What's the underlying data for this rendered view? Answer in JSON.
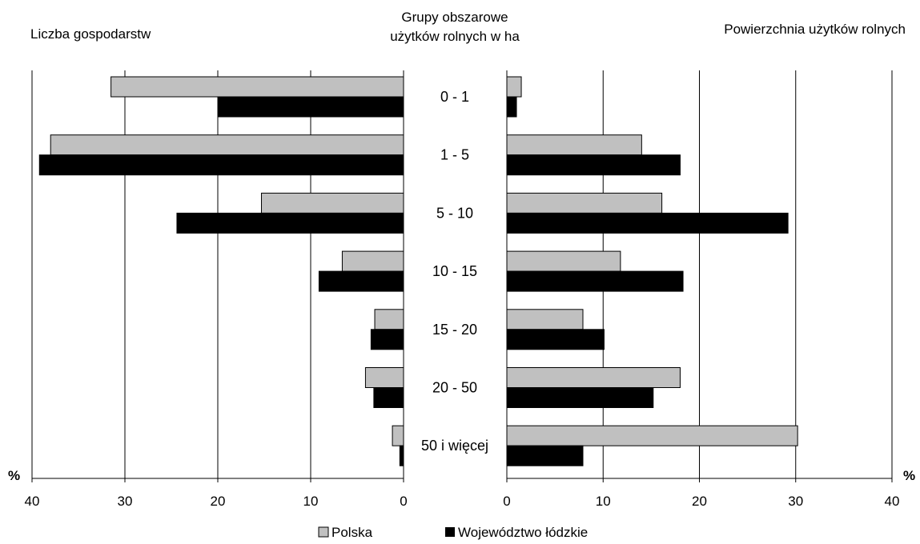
{
  "chart_data": {
    "type": "bar",
    "orientation": "horizontal",
    "center_title": [
      "Grupy obszarowe",
      "użytków rolnych w ha"
    ],
    "categories": [
      "0 - 1",
      "1 - 5",
      "5 - 10",
      "10 - 15",
      "15 - 20",
      "20 - 50",
      "50 i więcej"
    ],
    "unit_label": "%",
    "legend_position": "bottom",
    "grid": true,
    "panels": [
      {
        "title": "Liczba gospodarstw",
        "direction": "left",
        "xlim": [
          0,
          40
        ],
        "ticks": [
          "0",
          "10",
          "20",
          "30",
          "40"
        ],
        "series": [
          {
            "name": "Polska",
            "color": "#c0c0c0",
            "values": [
              31.5,
              38.0,
              15.3,
              6.6,
              3.1,
              4.1,
              1.2
            ]
          },
          {
            "name": "Województwo łódzkie",
            "color": "#000000",
            "values": [
              20.0,
              39.2,
              24.4,
              9.1,
              3.5,
              3.2,
              0.4
            ]
          }
        ]
      },
      {
        "title": "Powierzchnia użytków rolnych",
        "direction": "right",
        "xlim": [
          0,
          40
        ],
        "ticks": [
          "0",
          "10",
          "20",
          "30",
          "40"
        ],
        "series": [
          {
            "name": "Polska",
            "color": "#c0c0c0",
            "values": [
              1.5,
              14.0,
              16.1,
              11.8,
              7.9,
              18.0,
              30.2
            ]
          },
          {
            "name": "Województwo łódzkie",
            "color": "#000000",
            "values": [
              1.0,
              18.0,
              29.2,
              18.3,
              10.1,
              15.2,
              7.9
            ]
          }
        ]
      }
    ],
    "legend": [
      {
        "name": "Polska",
        "color": "#c0c0c0"
      },
      {
        "name": "Województwo łódzkie",
        "color": "#000000"
      }
    ]
  }
}
